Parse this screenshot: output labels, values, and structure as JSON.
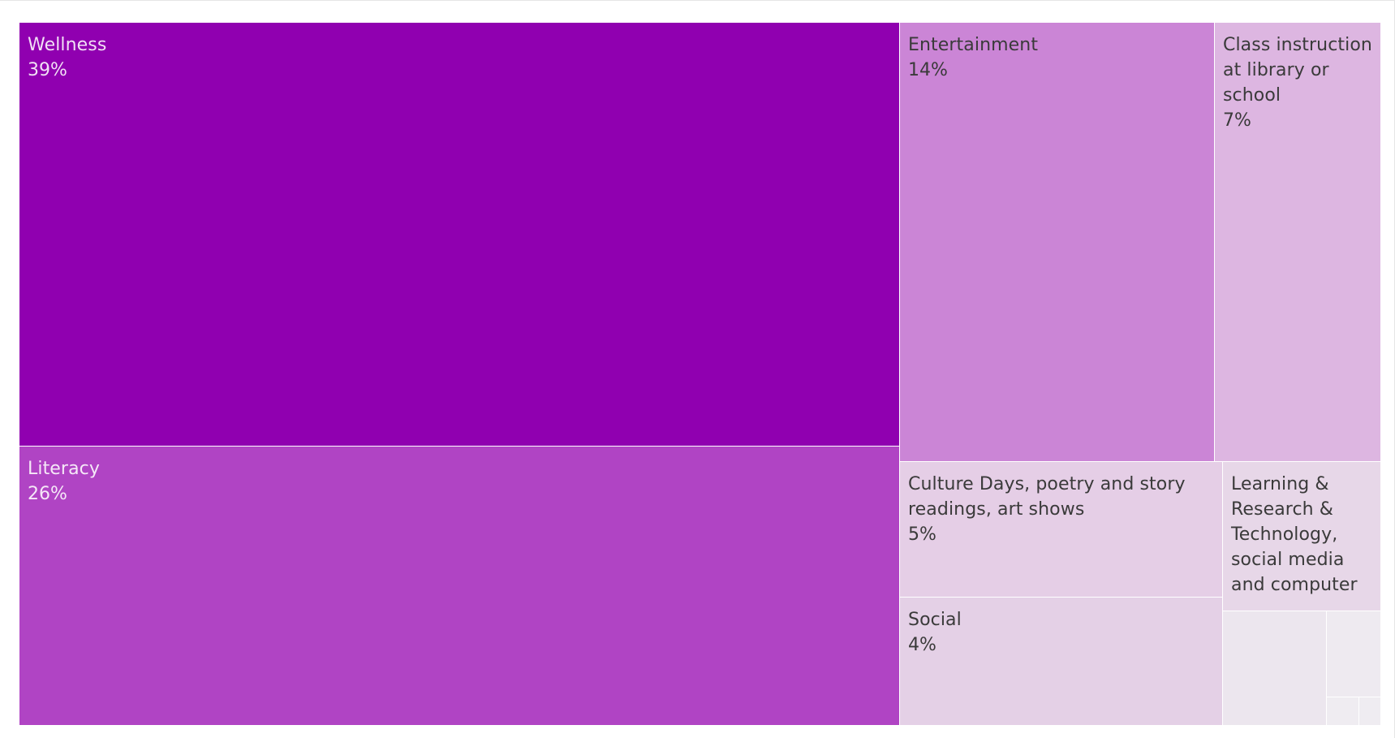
{
  "chart_data": {
    "type": "treemap",
    "title": "",
    "items": [
      {
        "label": "Wellness",
        "value": 39,
        "value_label": "39%",
        "color": "#9000B0",
        "text_style": "light"
      },
      {
        "label": "Literacy",
        "value": 26,
        "value_label": "26%",
        "color": "#B044C4",
        "text_style": "light"
      },
      {
        "label": "Entertainment",
        "value": 14,
        "value_label": "14%",
        "color": "#CB85D6",
        "text_style": "dark"
      },
      {
        "label": "Class instruction at library or school",
        "value": 7,
        "value_label": "7%",
        "color": "#DDB6E1",
        "text_style": "dark"
      },
      {
        "label": "Culture Days, poetry and story readings, art shows",
        "value": 5,
        "value_label": "5%",
        "color": "#E5CEE6",
        "text_style": "dark"
      },
      {
        "label": "Learning & Research & Technology, social media and computer",
        "value": 4,
        "value_label": "",
        "color": "#E7D7E8",
        "text_style": "dark"
      },
      {
        "label": "Social",
        "value": 4,
        "value_label": "4%",
        "color": "#E4D0E6",
        "text_style": "dark"
      },
      {
        "label": "",
        "value": 1.5,
        "value_label": "",
        "color": "#ECE6EE",
        "text_style": "dark"
      },
      {
        "label": "",
        "value": 0.8,
        "value_label": "",
        "color": "#EEEAF0",
        "text_style": "dark"
      },
      {
        "label": "",
        "value": 0.25,
        "value_label": "",
        "color": "#EFECF1",
        "text_style": "dark"
      },
      {
        "label": "",
        "value": 0.25,
        "value_label": "",
        "color": "#EFECF1",
        "text_style": "dark"
      }
    ]
  }
}
